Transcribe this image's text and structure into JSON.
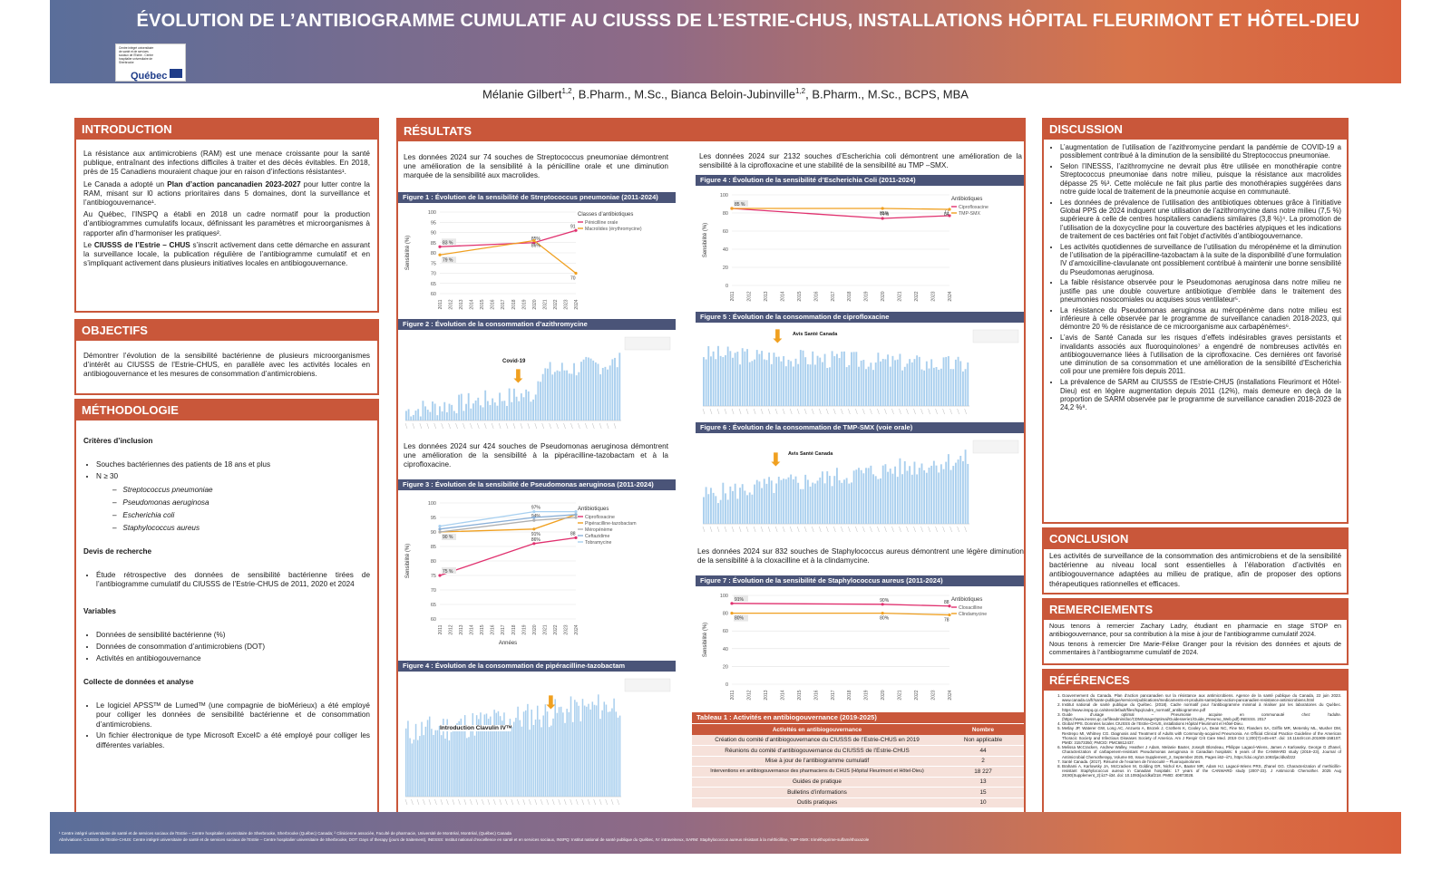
{
  "header": {
    "title": "ÉVOLUTION DE L’ANTIBIOGRAMME CUMULATIF AU CIUSSS DE L’ESTRIE-CHUS, INSTALLATIONS HÔPITAL FLEURIMONT ET HÔTEL-DIEU",
    "logo_text": "Centre intégré universitaire de santé et de services sociaux de l'Estrie - Centre hospitalier universitaire de Sherbrooke",
    "logo_brand": "Québec",
    "author1": "Mélanie Gilbert",
    "author1_sup": "1,2",
    "author1_cred": ", B.Pharm., M.Sc., Bianca Beloin-Jubinville",
    "author2_sup": "1,2",
    "author2_cred": ", B.Pharm., M.Sc., BCPS, MBA"
  },
  "intro": {
    "heading": "INTRODUCTION",
    "p1": "La résistance aux antimicrobiens (RAM) est une menace croissante pour la santé publique, entraînant des infections difficiles à traiter et des décès évitables. En 2018, près de 15 Canadiens mouraient chaque jour en raison d’infections résistantes¹.",
    "p2a": "Le Canada a adopté un ",
    "p2b": "Plan d’action pancanadien 2023-2027",
    "p2c": " pour lutter contre la RAM, misant sur l0 actions prioritaires dans 5 domaines, dont la surveillance et l’antibiogouvernance¹.",
    "p3": "Au Québec, l’INSPQ a établi en 2018 un cadre normatif pour la production d’antibiogrammes cumulatifs locaux, définissant les paramètres et microorganismes à rapporter afin d’harmoniser les pratiques².",
    "p4a": "Le ",
    "p4b": "CIUSSS de l’Estrie – CHUS",
    "p4c": " s’inscrit activement dans cette démarche en assurant la surveillance locale, la publication régulière de l’antibiogramme cumulatif et en s’impliquant activement dans plusieurs initiatives locales en antibiogouvernance."
  },
  "objectifs": {
    "heading": "OBJECTIFS",
    "p1": "Démontrer l’évolution de la sensibilité bactérienne de plusieurs microorganismes d’intérêt au CIUSSS de l’Estrie-CHUS, en parallèle avec les activités locales en antibiogouvernance et les mesures de consommation d’antimicrobiens."
  },
  "methodo": {
    "heading": "MÉTHODOLOGIE",
    "crit_title": "Critères d’inclusion",
    "crit_items": [
      "Souches bactériennes des patients de 18 ans et plus",
      "N ≥ 30"
    ],
    "organisms": [
      "Streptococcus pneumoniae",
      "Pseudomonas aeruginosa",
      "Escherichia coli",
      "Staphylococcus aureus"
    ],
    "devis_title": "Devis de recherche",
    "devis_item": "Étude rétrospective des données de sensibilité bactérienne tirées de l’antibiogramme cumulatif du CIUSSS de l’Estrie-CHUS de 2011, 2020 et 2024",
    "var_title": "Variables",
    "var_items": [
      "Données de sensibilité bactérienne (%)",
      "Données de consommation d’antimicrobiens (DOT)",
      "Activités en antibiogouvernance"
    ],
    "collecte_title": "Collecte de données et analyse",
    "collecte_items": [
      "Le logiciel APSSᵀᴹ de Lumedᵀᴹ (une compagnie de bioMérieux) a été employé pour colliger les données de sensibilité bactérienne et de consommation d’antimicrobiens.",
      "Un fichier électronique de type Microsoft Excel© a été employé pour colliger les différentes variables."
    ]
  },
  "resultats": {
    "heading": "RÉSULTATS",
    "t1": "Les données 2024 sur 74 souches de Streptococcus pneumoniae démontrent une amélioration de la sensibilité à la pénicilline orale et une diminution marquée de la sensibilité aux macrolides.",
    "fig1": "Figure 1 : Évolution de la sensibilité de Streptococcus pneumoniae (2011-2024)",
    "fig2": "Figure 2 : Évolution de la consommation d’azithromycine",
    "covid": "Covid-19",
    "t2": "Les données 2024 sur 424 souches de Pseudomonas aeruginosa démontrent une amélioration de la sensibilité à la pipéracilline-tazobactam et à la ciprofloxacine.",
    "fig3": "Figure 3 : Évolution de la sensibilité de Pseudomonas aeruginosa (2011-2024)",
    "fig4a": "Figure 4 : Évolution de la consommation de pipéracilline-tazobactam",
    "clav": "Introduction Clavulin IVᵀᴹ",
    "t3": "Les données 2024 sur 2132 souches d’Escherichia coli démontrent une amélioration de la sensibilité à la ciprofloxacine et une stabilité de la sensibilité au TMP –SMX.",
    "fig4b": "Figure 4 : Évolution de la sensibilité d’Escherichia Coli (2011-2024)",
    "fig5": "Figure 5 : Évolution de la consommation de ciprofloxacine",
    "avis": "Avis Santé Canada",
    "fig6": "Figure 6 : Évolution de la consommation de TMP-SMX (voie orale)",
    "t4": "Les données 2024 sur 832 souches de Staphylococcus aureus démontrent une légère diminution de la sensibilité à la cloxacilline et à la clindamycine.",
    "fig7": "Figure 7 : Évolution de la sensibilité de Staphylococcus aureus (2011-2024)",
    "table_title": "Tableau 1 : Activités en antibiogouvernance (2019-2025)",
    "table_headers": [
      "Activités en antibiogouvernance",
      "Nombre"
    ],
    "table_rows": [
      [
        "Création du comité d’antibiogouvernance du CIUSSS de l’Estrie-CHUS en 2019",
        "Non applicable"
      ],
      [
        "Réunions du comité d’antibiogouvernance du CIUSSS de l’Estrie-CHUS",
        "44"
      ],
      [
        "Mise à jour de l’antibiogramme cumulatif",
        "2"
      ],
      [
        "Interventions en antibiogouvernance des pharmaciens du CHUS (Hôpital Fleurimont et Hôtel-Dieu)",
        "18 227"
      ],
      [
        "Guides de pratique",
        "13"
      ],
      [
        "Bulletins d’informations",
        "15"
      ],
      [
        "Outils pratiques",
        "10"
      ]
    ]
  },
  "charts": {
    "ylabel": "Sensibilité (%)",
    "xlabel": "Années",
    "years": [
      "2011",
      "2012",
      "2013",
      "2014",
      "2015",
      "2016",
      "2017",
      "2018",
      "2019",
      "2020",
      "2021",
      "2022",
      "2023",
      "2024"
    ],
    "sp": {
      "legend_title": "Classes d’antibiotiques",
      "yticks": [
        "100",
        "95",
        "90",
        "85",
        "80",
        "75",
        "70",
        "65",
        "60"
      ],
      "ylim": [
        60,
        100
      ],
      "series": [
        {
          "name": "Pénicilline orale",
          "color": "#e0306e",
          "x": [
            0,
            9,
            13
          ],
          "y": [
            83,
            85,
            91
          ],
          "labels": [
            "83 %",
            "85%",
            "91"
          ]
        },
        {
          "name": "Macrolides (érythromycine)",
          "color": "#f0a020",
          "x": [
            0,
            9,
            13
          ],
          "y": [
            79,
            86,
            70
          ],
          "labels": [
            "79 %",
            "86%",
            "70"
          ]
        }
      ]
    },
    "pa": {
      "legend_title": "Antibiotiques",
      "yticks": [
        "100",
        "95",
        "90",
        "85",
        "80",
        "75",
        "70",
        "65",
        "60"
      ],
      "ylim": [
        60,
        100
      ],
      "series": [
        {
          "name": "Ciprofloxacine",
          "color": "#e0306e",
          "x": [
            0,
            9,
            13
          ],
          "y": [
            75,
            86,
            88
          ],
          "labels": [
            "75 %",
            "86%",
            "88"
          ]
        },
        {
          "name": "Pipéracilline-tazobactam",
          "color": "#f0a020",
          "x": [
            0,
            9,
            13
          ],
          "y": [
            90,
            91,
            96
          ],
          "labels": [
            "90 %",
            "91%",
            ""
          ]
        },
        {
          "name": "Méropénème",
          "color": "#b0b0b0",
          "x": [
            0,
            9,
            13
          ],
          "y": [
            90,
            94,
            95
          ],
          "labels": [
            "",
            "94%",
            ""
          ]
        },
        {
          "name": "Ceftazidime",
          "color": "#8ab0d8",
          "x": [
            0,
            9,
            13
          ],
          "y": [
            91,
            95,
            96
          ],
          "labels": [
            "",
            "",
            ""
          ]
        },
        {
          "name": "Tobramycine",
          "color": "#a8d0f0",
          "x": [
            0,
            9,
            13
          ],
          "y": [
            92,
            97,
            97
          ],
          "labels": [
            "",
            "97%",
            ""
          ]
        }
      ]
    },
    "ec": {
      "legend_title": "Antibiotiques",
      "yticks": [
        "100",
        "80",
        "60",
        "40",
        "20",
        "0"
      ],
      "ylim": [
        0,
        100
      ],
      "series": [
        {
          "name": "Ciprofloxacine",
          "color": "#e0306e",
          "x": [
            0,
            9,
            13
          ],
          "y": [
            85,
            74,
            77
          ],
          "labels": [
            "85 %",
            "74%",
            "77"
          ]
        },
        {
          "name": "TMP-SMX",
          "color": "#f0a020",
          "x": [
            0,
            9,
            13
          ],
          "y": [
            85,
            85,
            84
          ],
          "labels": [
            "",
            "85%",
            "84"
          ]
        }
      ]
    },
    "sa": {
      "legend_title": "Antibiotiques",
      "yticks": [
        "100",
        "80",
        "60",
        "40",
        "20",
        "0"
      ],
      "ylim": [
        0,
        100
      ],
      "series": [
        {
          "name": "Cloxacilline",
          "color": "#e0306e",
          "x": [
            0,
            9,
            13
          ],
          "y": [
            91,
            90,
            88
          ],
          "labels": [
            "91%",
            "90%",
            "88"
          ]
        },
        {
          "name": "Clindamycine",
          "color": "#f0a020",
          "x": [
            0,
            9,
            13
          ],
          "y": [
            80,
            80,
            78
          ],
          "labels": [
            "80%",
            "80%",
            "78"
          ]
        }
      ]
    }
  },
  "discussion": {
    "heading": "DISCUSSION",
    "items": [
      "L’augmentation de l’utilisation de l’azithromycine pendant la pandémie de COVID-19 a possiblement contribué à la diminution de la sensibilité du Streptococcus pneumoniae.",
      "Selon l’INESSS, l’azithromycine ne devrait plus être utilisée en monothérapie contre Streptococcus pneumoniae dans notre milieu, puisque la résistance aux macrolides dépasse 25 %³. Cette molécule ne fait plus partie des monothérapies suggérées dans notre guide local de traitement de la pneumonie acquise en communauté.",
      "Les données de prévalence de l’utilisation des antibiotiques obtenues grâce à l’initiative Global PPS de 2024 indiquent une utilisation de l’azithromycine dans notre milieu (7,5 %) supérieure à celle de centres hospitaliers canadiens similaires (3,8 %)⁴. La promotion de l’utilisation de la doxycycline pour la couverture des bactéries atypiques et les indications de traitement de ces bactéries ont fait l’objet d’activités d’antibiogouvernance.",
      "Les activités quotidiennes de surveillance de l’utilisation du méropénème et la diminution de l’utilisation de la pipéracilline-tazobactam à la suite de la disponibilité d’une formulation IV d’amoxicilline-clavulanate ont possiblement contribué à maintenir une bonne sensibilité du Pseudomonas aeruginosa.",
      "La faible résistance observée pour le Pseudomonas aeruginosa dans notre milieu ne justifie pas une double couverture antibiotique d’emblée dans le traitement des pneumonies nosocomiales ou acquises sous ventilateur⁵.",
      "La résistance du Pseudomonas aeruginosa au méropénème dans notre milieu est inférieure à celle observée par le programme de surveillance canadien 2018-2023, qui démontre 20 % de résistance de ce microorganisme aux carbapénèmes⁶.",
      "L’avis de Santé Canada sur les risques d’effets indésirables graves persistants et invalidants associés aux fluoroquinolones⁷ a engendré de nombreuses activités en antibiogouvernance liées à l’utilisation de la ciprofloxacine. Ces dernières ont favorisé une diminution de sa consommation et une amélioration de la sensibilité d’Escherichia coli pour une première fois depuis 2011.",
      "La prévalence de SARM au CIUSSS de l’Estrie-CHUS (installations Fleurimont et Hôtel-Dieu) est en légère augmentation depuis 2011 (12%), mais demeure en deçà de la proportion de SARM observée par le programme de surveillance canadien 2018-2023 de 24,2 %⁸."
    ]
  },
  "conclusion": {
    "heading": "CONCLUSION",
    "p": "Les activités de surveillance de la consommation des antimicrobiens et de la sensibilité bactérienne au niveau local sont essentielles à l’élaboration d’activités en antibiogouvernance adaptées au milieu de pratique, afin de proposer des options thérapeutiques rationnelles et efficaces."
  },
  "remerciements": {
    "heading": "REMERCIEMENTS",
    "p1": "Nous tenons à remercier Zachary Ladry, étudiant en pharmacie en stage STOP en antibiogouvernance, pour sa contribution à la mise à jour de l’antibiogramme cumulatif 2024.",
    "p2": "Nous tenons à remercier Dre Marie-Félixe Granger pour la révision des données et ajouts de commentaires à l’antibiogramme cumulatif de 2024."
  },
  "references": {
    "heading": "RÉFÉRENCES",
    "items": [
      "Gouvernement du Canada. Plan d’action pancanadien sur la résistance aux antimicrobiens. Agence de la santé publique du Canada, 22 juin 2023. www.canada.ca/fr/sante-publique/services/publications/medicaments-et-produits-sante/plan-action-pancanadien-resistance-antimicrobiens.html",
      "Institut national de santé publique du Québec. (2018). Cadre normatif pour l’antibiogramme minimal à réaliser par les laboratoires du Québec. https://www.inspq.qc.ca/sites/default/files/lspq/cadre_normatif_antibiogramme.pdf",
      "Guide d’usage optimal – Pneumonie acquise en communauté chez l’adulte. (https://www.inesss.qc.ca/fileadmin/doc/CDM/UsageOptimal/Guidesserie1/Guide_Pneumo_Web.pdf) INESSS. 2017",
      "Global PPS. Données locales CIUSSS de l’Estrie-CHUS, installations Hôpital Fleurimont et Hôtel-Dieu.",
      "Metlay JP, Waterer GW, Long AC, Anzueto A, Brozek J, Crothers K, Cooley LA, Dean NC, Fine MJ, Flanders SA, Griffin MR, Metersky ML, Musher DM, Restrepo MI, Whitney CG. Diagnosis and Treatment of Adults with Community-acquired Pneumonia. An Official Clinical Practice Guideline of the American Thoracic Society and Infectious Diseases Society of America. Am J Respir Crit Care Med. 2019 Oct 1;200(7):e45-e67. doi: 10.1164/rccm.201908-1581ST. PMID: 31573350; PMCID: PMC6812437.",
      "Melissa McCracken, Andrew Walley, Heather J Adam, Melanie Baxter, Joseph Blondeau, Philippe Lagacé-Wiens, James A Karlowsky, George G Zhanel, Characterization of carbapenem-resistant Pseudomonas aeruginosa in Canadian hospitals: 6 years of the CANWARD study (2018–23), Journal of Antimicrobial Chemotherapy, Volume 80, Issue Supplement_2, September 2025, Pages ii62–ii71, https://doi.org/10.1093/jac/dkaf222",
      "Santé Canada. (2017). Résumé de l’examen de l’innocuité – Fluoroquinolones",
      "Brahami A, Karlowsky JA, McCracken M, Golding GR, Nichol KA, Baxter MR, Adam HJ, Lagacé-Wiens PRS, Zhanel GG. Characterization of methicillin-resistant Staphylococcus aureus in Canadian hospitals: 17 years of the CANWARD study (2007-23). J Antimicrob Chemother. 2025 Aug 28;80(Supplement_2):ii27-ii34. doi: 10.1093/jac/dkaf218. PMID: 40873028."
    ]
  },
  "footer": {
    "line1": "¹ Centre intégré universitaire de santé et de services sociaux de l'Estrie – Centre hospitalier universitaire de Sherbrooke, Sherbrooke (Québec) Canada; ² Clinicienne associée, Faculté de pharmacie, Université de Montréal, Montréal, (Québec) Canada",
    "line2": "Abréviations: CIUSSS de l'Estrie-CHUS: Centre intégré universitaire de santé et de services sociaux de l'Estrie – Centre hospitalier universitaire de Sherbrooke, DOT: Days of therapy (jours de traitement), INESSS: Institut national d’excellence en santé et en services sociaux, INSPQ: Institut national de santé publique du Québec, IV: intraveineux, SARM: Staphylococcus aureus résistant à la méthicilline, TMP-SMX: triméthoprime-sulfaméthoxazole"
  },
  "colors": {
    "accent": "#c9573a",
    "figbar": "#4a5478",
    "bars": "#a9cfee"
  }
}
